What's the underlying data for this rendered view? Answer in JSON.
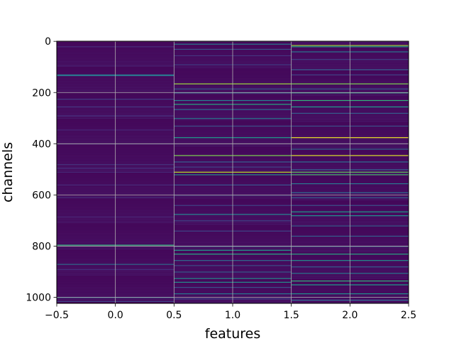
{
  "chart_data": {
    "type": "heatmap",
    "title": "",
    "xlabel": "features",
    "ylabel": "channels",
    "xlim": [
      -0.5,
      2.5
    ],
    "ylim": [
      1023.5,
      -0.5
    ],
    "y_inverted": true,
    "x_ticks": [
      -0.5,
      0.0,
      0.5,
      1.0,
      1.5,
      2.0,
      2.5
    ],
    "x_tick_labels": [
      "−0.5",
      "0.0",
      "0.5",
      "1.0",
      "1.5",
      "2.0",
      "2.5"
    ],
    "y_ticks": [
      0,
      200,
      400,
      600,
      800,
      1000
    ],
    "y_tick_labels": [
      "0",
      "200",
      "400",
      "600",
      "800",
      "1000"
    ],
    "grid": true,
    "colormap": "viridis",
    "shape": [
      1024,
      3
    ],
    "background_level": 0.02,
    "columns": [
      {
        "feature": 0,
        "bright_rows": [
          {
            "channel": 20,
            "level": 0.12
          },
          {
            "channel": 95,
            "level": 0.1
          },
          {
            "channel": 130,
            "level": 0.45
          },
          {
            "channel": 133,
            "level": 0.35
          },
          {
            "channel": 225,
            "level": 0.18
          },
          {
            "channel": 255,
            "level": 0.15
          },
          {
            "channel": 290,
            "level": 0.12
          },
          {
            "channel": 345,
            "level": 0.1
          },
          {
            "channel": 480,
            "level": 0.15
          },
          {
            "channel": 495,
            "level": 0.12
          },
          {
            "channel": 510,
            "level": 0.12
          },
          {
            "channel": 560,
            "level": 0.1
          },
          {
            "channel": 610,
            "level": 0.12
          },
          {
            "channel": 685,
            "level": 0.1
          },
          {
            "channel": 795,
            "level": 0.65
          },
          {
            "channel": 870,
            "level": 0.35
          },
          {
            "channel": 890,
            "level": 0.12
          },
          {
            "channel": 1000,
            "level": 0.3
          },
          {
            "channel": 1015,
            "level": 0.2
          }
        ]
      },
      {
        "feature": 1,
        "bright_rows": [
          {
            "channel": 10,
            "level": 0.4
          },
          {
            "channel": 30,
            "level": 0.25
          },
          {
            "channel": 55,
            "level": 0.15
          },
          {
            "channel": 90,
            "level": 0.18
          },
          {
            "channel": 165,
            "level": 0.85
          },
          {
            "channel": 185,
            "level": 0.3
          },
          {
            "channel": 200,
            "level": 0.4
          },
          {
            "channel": 230,
            "level": 0.45
          },
          {
            "channel": 245,
            "level": 0.6
          },
          {
            "channel": 265,
            "level": 0.35
          },
          {
            "channel": 300,
            "level": 0.4
          },
          {
            "channel": 330,
            "level": 0.25
          },
          {
            "channel": 375,
            "level": 0.55
          },
          {
            "channel": 445,
            "level": 0.8
          },
          {
            "channel": 470,
            "level": 0.3
          },
          {
            "channel": 490,
            "level": 0.2
          },
          {
            "channel": 510,
            "level": 0.9
          },
          {
            "channel": 520,
            "level": 0.5
          },
          {
            "channel": 560,
            "level": 0.25
          },
          {
            "channel": 600,
            "level": 0.2
          },
          {
            "channel": 640,
            "level": 0.2
          },
          {
            "channel": 675,
            "level": 0.45
          },
          {
            "channel": 700,
            "level": 0.2
          },
          {
            "channel": 740,
            "level": 0.2
          },
          {
            "channel": 800,
            "level": 0.3
          },
          {
            "channel": 815,
            "level": 0.55
          },
          {
            "channel": 830,
            "level": 0.6
          },
          {
            "channel": 855,
            "level": 0.35
          },
          {
            "channel": 875,
            "level": 0.25
          },
          {
            "channel": 900,
            "level": 0.3
          },
          {
            "channel": 925,
            "level": 0.5
          },
          {
            "channel": 940,
            "level": 0.5
          },
          {
            "channel": 960,
            "level": 0.25
          },
          {
            "channel": 985,
            "level": 0.4
          },
          {
            "channel": 1005,
            "level": 0.2
          }
        ]
      },
      {
        "feature": 2,
        "bright_rows": [
          {
            "channel": 15,
            "level": 0.85
          },
          {
            "channel": 20,
            "level": 0.55
          },
          {
            "channel": 40,
            "level": 0.4
          },
          {
            "channel": 70,
            "level": 0.2
          },
          {
            "channel": 110,
            "level": 0.3
          },
          {
            "channel": 130,
            "level": 0.2
          },
          {
            "channel": 165,
            "level": 0.8
          },
          {
            "channel": 185,
            "level": 0.3
          },
          {
            "channel": 200,
            "level": 0.6
          },
          {
            "channel": 230,
            "level": 0.65
          },
          {
            "channel": 255,
            "level": 0.55
          },
          {
            "channel": 280,
            "level": 0.3
          },
          {
            "channel": 330,
            "level": 0.25
          },
          {
            "channel": 375,
            "level": 0.98
          },
          {
            "channel": 420,
            "level": 0.35
          },
          {
            "channel": 445,
            "level": 0.95
          },
          {
            "channel": 470,
            "level": 0.35
          },
          {
            "channel": 500,
            "level": 0.3
          },
          {
            "channel": 510,
            "level": 0.75
          },
          {
            "channel": 520,
            "level": 0.7
          },
          {
            "channel": 555,
            "level": 0.4
          },
          {
            "channel": 590,
            "level": 0.35
          },
          {
            "channel": 610,
            "level": 0.3
          },
          {
            "channel": 640,
            "level": 0.25
          },
          {
            "channel": 665,
            "level": 0.55
          },
          {
            "channel": 680,
            "level": 0.5
          },
          {
            "channel": 720,
            "level": 0.3
          },
          {
            "channel": 760,
            "level": 0.3
          },
          {
            "channel": 800,
            "level": 0.3
          },
          {
            "channel": 830,
            "level": 0.6
          },
          {
            "channel": 855,
            "level": 0.5
          },
          {
            "channel": 880,
            "level": 0.3
          },
          {
            "channel": 905,
            "level": 0.4
          },
          {
            "channel": 935,
            "level": 0.65
          },
          {
            "channel": 950,
            "level": 0.55
          },
          {
            "channel": 985,
            "level": 0.5
          },
          {
            "channel": 1010,
            "level": 0.35
          }
        ]
      }
    ]
  }
}
